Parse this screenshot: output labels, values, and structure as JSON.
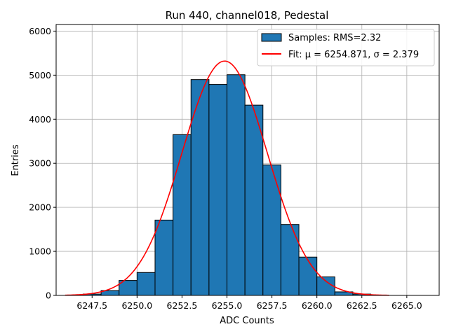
{
  "chart_data": {
    "type": "bar",
    "title": "Run 440, channel018, Pedestal",
    "xlabel": "ADC Counts",
    "ylabel": "Entries",
    "xlim": [
      6245.5,
      6266.8
    ],
    "ylim": [
      0,
      6150
    ],
    "grid": true,
    "legend_position": "top-right",
    "x_ticks": [
      "6247.5",
      "6250.0",
      "6252.5",
      "6255.0",
      "6257.5",
      "6260.0",
      "6262.5",
      "6265.0"
    ],
    "y_ticks": [
      "0",
      "1000",
      "2000",
      "3000",
      "4000",
      "5000",
      "6000"
    ],
    "bin_width": 1,
    "series": [
      {
        "name": "Samples: RMS=2.32",
        "kind": "histogram",
        "color": "#1f77b4",
        "edge_color": "#000000",
        "bins": [
          {
            "x0": 6247,
            "x1": 6248,
            "count": 30
          },
          {
            "x0": 6248,
            "x1": 6249,
            "count": 110
          },
          {
            "x0": 6249,
            "x1": 6250,
            "count": 340
          },
          {
            "x0": 6250,
            "x1": 6251,
            "count": 520
          },
          {
            "x0": 6251,
            "x1": 6252,
            "count": 1710
          },
          {
            "x0": 6252,
            "x1": 6253,
            "count": 3650
          },
          {
            "x0": 6253,
            "x1": 6254,
            "count": 4900
          },
          {
            "x0": 6254,
            "x1": 6255,
            "count": 4790
          },
          {
            "x0": 6255,
            "x1": 6256,
            "count": 5010
          },
          {
            "x0": 6256,
            "x1": 6257,
            "count": 4320
          },
          {
            "x0": 6257,
            "x1": 6258,
            "count": 2960
          },
          {
            "x0": 6258,
            "x1": 6259,
            "count": 1610
          },
          {
            "x0": 6259,
            "x1": 6260,
            "count": 870
          },
          {
            "x0": 6260,
            "x1": 6261,
            "count": 420
          },
          {
            "x0": 6261,
            "x1": 6262,
            "count": 80
          },
          {
            "x0": 6262,
            "x1": 6263,
            "count": 30
          }
        ]
      },
      {
        "name": "Fit: μ = 6254.871, σ = 2.379",
        "kind": "gaussian",
        "color": "#ff0000",
        "mu": 6254.871,
        "sigma": 2.379,
        "amplitude": 5320,
        "x_range": [
          6246,
          6264
        ]
      }
    ]
  }
}
